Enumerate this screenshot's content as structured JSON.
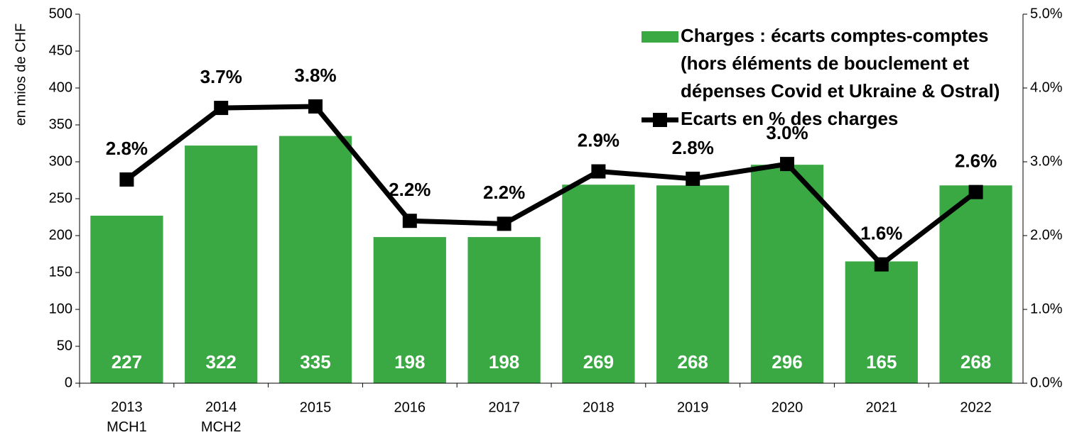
{
  "chart_data": {
    "type": "bar-line",
    "y_axis_label": "en mios de CHF",
    "categories": [
      "2013\nMCH1",
      "2014\nMCH2",
      "2015",
      "2016",
      "2017",
      "2018",
      "2019",
      "2020",
      "2021",
      "2022"
    ],
    "series": [
      {
        "name": "Charges : écarts comptes-comptes\n(hors éléments de bouclement et\ndépenses Covid et Ukraine & Ostral)",
        "type": "bar",
        "color": "#3aa843",
        "values": [
          227,
          322,
          335,
          198,
          198,
          269,
          268,
          296,
          165,
          268
        ]
      },
      {
        "name": "Ecarts en % des charges",
        "type": "line",
        "axis": "y2",
        "color": "#000000",
        "values": [
          2.76,
          3.73,
          3.75,
          2.2,
          2.16,
          2.87,
          2.77,
          2.97,
          1.61,
          2.59
        ],
        "value_labels": [
          "2.8%",
          "3.7%",
          "3.8%",
          "2.2%",
          "2.2%",
          "2.9%",
          "2.8%",
          "3.0%",
          "1.6%",
          "2.6%"
        ]
      }
    ],
    "ylim": [
      0,
      500
    ],
    "yticks": [
      0,
      50,
      100,
      150,
      200,
      250,
      300,
      350,
      400,
      450,
      500
    ],
    "y2lim": [
      0,
      5
    ],
    "y2ticks": [
      {
        "value": 0,
        "label": "0.0%"
      },
      {
        "value": 1,
        "label": "1.0%"
      },
      {
        "value": 2,
        "label": "2.0%"
      },
      {
        "value": 3,
        "label": "3.0%"
      },
      {
        "value": 4,
        "label": "4.0%"
      },
      {
        "value": 5,
        "label": "5.0%"
      }
    ],
    "grid": false
  }
}
